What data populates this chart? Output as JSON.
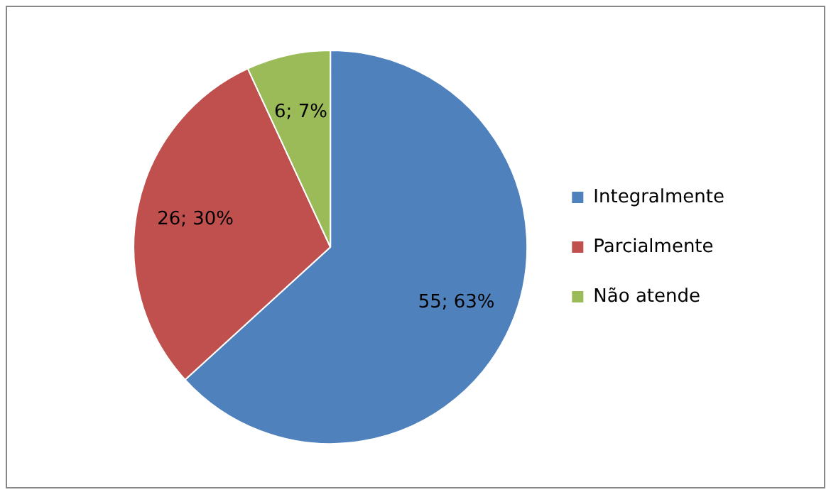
{
  "chart_data": {
    "type": "pie",
    "categories": [
      "Integralmente",
      "Parcialmente",
      "Não atende"
    ],
    "values": [
      55,
      26,
      6
    ],
    "colors": [
      "#4f81bd",
      "#c0504d",
      "#9bbb59"
    ],
    "value_labels": [
      "55; 63%",
      "26; 30%",
      "6; 7%"
    ],
    "legend": "right"
  }
}
